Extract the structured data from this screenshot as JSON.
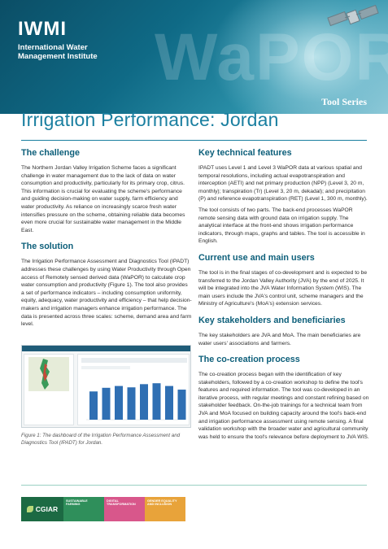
{
  "header": {
    "logo_mark": "IWMI",
    "org_name_line1": "International Water",
    "org_name_line2": "Management Institute",
    "watermark": "WaPOR",
    "series": "Tool Series"
  },
  "title": "Irrigation Performance: Jordan",
  "left": {
    "challenge_heading": "The challenge",
    "challenge_text": "The Northern Jordan Valley Irrigation Scheme faces a significant challenge in water management due to the lack of data on water consumption and productivity, particularly for its primary crop, citrus. This information is crucial for evaluating the scheme's performance and guiding decision-making on water supply, farm efficiency and water productivity. As reliance on increasingly scarce fresh water intensifies pressure on the scheme, obtaining reliable data becomes even more crucial for sustainable water management in the Middle East.",
    "solution_heading": "The solution",
    "solution_text": "The Irrigation Performance Assessment and Diagnostics Tool (IPADT) addresses these challenges by using Water Productivity through Open access of Remotely sensed derived data (WaPOR) to calculate crop water consumption and productivity (Figure 1). The tool also provides a set of performance indicators – including consumption uniformity, equity, adequacy, water productivity and efficiency – that help decision-makers and irrigation managers enhance irrigation performance. The data is presented across three scales: scheme, demand area and farm level.",
    "figure_caption": "Figure 1: The dashboard of the Irrigation Performance Assessment and Diagnostics Tool (IPADT) for Jordan."
  },
  "right": {
    "features_heading": "Key technical features",
    "features_text1": "IPADT uses Level 1 and Level 3 WaPOR data at various spatial and temporal resolutions, including actual evapotranspiration and interception (AETI) and net primary production (NPP) (Level 3, 20 m, monthly); transpiration (Tr) (Level 3, 20 m, dekadal); and precipitation (P) and reference evapotranspiration (RET) (Level 1, 300 m, monthly).",
    "features_text2": "The tool consists of two parts. The back-end processes WaPOR remote sensing data with ground data on irrigation supply. The analytical interface at the front-end shows irrigation performance indicators, through maps, graphs and tables. The tool is accessible in English.",
    "use_heading": "Current use and main users",
    "use_text": "The tool is in the final stages of co-development and is expected to be transferred to the Jordan Valley Authority (JVA) by the end of 2025. It will be integrated into the JVA Water Information System (WIS). The main users include the JVA's control unit, scheme managers and the Ministry of Agriculture's (MoA's) extension services.",
    "stake_heading": "Key stakeholders and beneficiaries",
    "stake_text": "The key stakeholders are JVA and MoA. The main beneficiaries are water users' associations and farmers.",
    "cocreation_heading": "The co-creation process",
    "cocreation_text": "The co-creation process began with the identification of key stakeholders, followed by a co-creation workshop to define the tool's features and required information. The tool was co-developed in an iterative process, with regular meetings and constant refining based on stakeholder feedback. On-the-job trainings for a technical team from JVA and MoA focused on building capacity around the tool's back-end and irrigation performance assessment using remote sensing. A final validation workshop with the broader water and agricultural community was held to ensure the tool's relevance before deployment to JVA WIS."
  },
  "footer": {
    "cgiar": "CGIAR",
    "tag1": "SUSTAINABLE FARMING",
    "tag2": "DIGITAL TRANSFORMATION",
    "tag3": "GENDER EQUALITY AND INCLUSION"
  },
  "figure_bar_levels": [
    0.62,
    0.7,
    0.74,
    0.71,
    0.78,
    0.8,
    0.74,
    0.66
  ]
}
